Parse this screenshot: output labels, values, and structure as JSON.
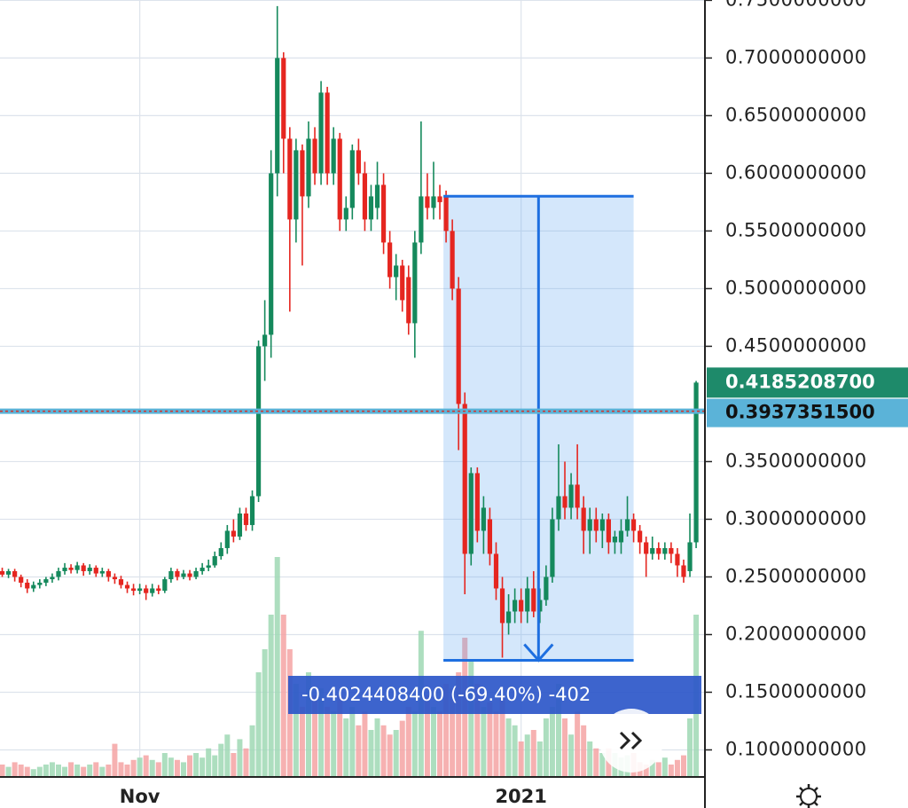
{
  "chart_data": {
    "type": "candlestick",
    "categories": [
      null,
      null,
      null,
      null,
      null,
      null,
      null,
      null,
      null,
      null,
      null,
      null,
      null,
      null,
      null,
      null,
      null,
      null,
      null,
      null,
      null,
      null,
      "Nov",
      null,
      null,
      null,
      null,
      null,
      null,
      null,
      null,
      null,
      null,
      null,
      null,
      null,
      null,
      null,
      null,
      null,
      null,
      null,
      null,
      null,
      null,
      null,
      null,
      null,
      null,
      null,
      null,
      null,
      null,
      null,
      null,
      null,
      null,
      null,
      null,
      null,
      null,
      null,
      null,
      null,
      null,
      null,
      null,
      null,
      null,
      null,
      null,
      null,
      null,
      null,
      null,
      null,
      null,
      null,
      null,
      null,
      null,
      null,
      null,
      "2021",
      null,
      null,
      null,
      null,
      null,
      null,
      null,
      null,
      null,
      null,
      null,
      null,
      null,
      null,
      null,
      null,
      null,
      null,
      null,
      null,
      null,
      null,
      null,
      null,
      null,
      null,
      null,
      null
    ],
    "ohlc": [
      [
        0.255,
        0.258,
        0.25,
        0.252
      ],
      [
        0.252,
        0.257,
        0.249,
        0.255
      ],
      [
        0.255,
        0.257,
        0.246,
        0.25
      ],
      [
        0.25,
        0.252,
        0.241,
        0.245
      ],
      [
        0.245,
        0.248,
        0.236,
        0.24
      ],
      [
        0.24,
        0.246,
        0.237,
        0.243
      ],
      [
        0.243,
        0.248,
        0.24,
        0.245
      ],
      [
        0.245,
        0.25,
        0.242,
        0.248
      ],
      [
        0.248,
        0.253,
        0.245,
        0.25
      ],
      [
        0.25,
        0.258,
        0.247,
        0.255
      ],
      [
        0.255,
        0.262,
        0.252,
        0.258
      ],
      [
        0.258,
        0.261,
        0.253,
        0.256
      ],
      [
        0.256,
        0.263,
        0.253,
        0.26
      ],
      [
        0.26,
        0.262,
        0.251,
        0.255
      ],
      [
        0.255,
        0.261,
        0.252,
        0.258
      ],
      [
        0.258,
        0.26,
        0.25,
        0.253
      ],
      [
        0.253,
        0.258,
        0.25,
        0.255
      ],
      [
        0.255,
        0.257,
        0.246,
        0.25
      ],
      [
        0.25,
        0.253,
        0.244,
        0.248
      ],
      [
        0.248,
        0.251,
        0.24,
        0.243
      ],
      [
        0.243,
        0.246,
        0.236,
        0.24
      ],
      [
        0.24,
        0.244,
        0.234,
        0.238
      ],
      [
        0.238,
        0.244,
        0.235,
        0.24
      ],
      [
        0.24,
        0.243,
        0.23,
        0.236
      ],
      [
        0.236,
        0.244,
        0.233,
        0.24
      ],
      [
        0.24,
        0.243,
        0.235,
        0.238
      ],
      [
        0.238,
        0.25,
        0.236,
        0.248
      ],
      [
        0.248,
        0.258,
        0.245,
        0.255
      ],
      [
        0.255,
        0.257,
        0.247,
        0.25
      ],
      [
        0.25,
        0.256,
        0.248,
        0.253
      ],
      [
        0.253,
        0.256,
        0.247,
        0.25
      ],
      [
        0.25,
        0.258,
        0.248,
        0.255
      ],
      [
        0.255,
        0.262,
        0.252,
        0.258
      ],
      [
        0.258,
        0.265,
        0.255,
        0.26
      ],
      [
        0.26,
        0.272,
        0.258,
        0.268
      ],
      [
        0.268,
        0.28,
        0.265,
        0.275
      ],
      [
        0.275,
        0.295,
        0.27,
        0.29
      ],
      [
        0.29,
        0.3,
        0.28,
        0.285
      ],
      [
        0.285,
        0.31,
        0.282,
        0.305
      ],
      [
        0.305,
        0.31,
        0.29,
        0.295
      ],
      [
        0.295,
        0.325,
        0.29,
        0.32
      ],
      [
        0.32,
        0.455,
        0.315,
        0.45
      ],
      [
        0.45,
        0.49,
        0.42,
        0.46
      ],
      [
        0.46,
        0.62,
        0.44,
        0.6
      ],
      [
        0.6,
        0.745,
        0.58,
        0.7
      ],
      [
        0.7,
        0.705,
        0.6,
        0.63
      ],
      [
        0.63,
        0.64,
        0.48,
        0.56
      ],
      [
        0.56,
        0.63,
        0.54,
        0.62
      ],
      [
        0.62,
        0.625,
        0.52,
        0.58
      ],
      [
        0.58,
        0.645,
        0.57,
        0.63
      ],
      [
        0.63,
        0.64,
        0.59,
        0.6
      ],
      [
        0.6,
        0.68,
        0.59,
        0.67
      ],
      [
        0.67,
        0.675,
        0.59,
        0.6
      ],
      [
        0.6,
        0.64,
        0.59,
        0.63
      ],
      [
        0.63,
        0.635,
        0.55,
        0.56
      ],
      [
        0.56,
        0.58,
        0.55,
        0.57
      ],
      [
        0.57,
        0.625,
        0.56,
        0.62
      ],
      [
        0.62,
        0.63,
        0.59,
        0.6
      ],
      [
        0.6,
        0.61,
        0.55,
        0.56
      ],
      [
        0.56,
        0.59,
        0.55,
        0.58
      ],
      [
        0.57,
        0.61,
        0.56,
        0.59
      ],
      [
        0.59,
        0.6,
        0.53,
        0.54
      ],
      [
        0.54,
        0.55,
        0.5,
        0.51
      ],
      [
        0.51,
        0.53,
        0.49,
        0.52
      ],
      [
        0.52,
        0.525,
        0.48,
        0.49
      ],
      [
        0.51,
        0.52,
        0.46,
        0.47
      ],
      [
        0.47,
        0.55,
        0.44,
        0.54
      ],
      [
        0.54,
        0.645,
        0.53,
        0.58
      ],
      [
        0.58,
        0.6,
        0.56,
        0.57
      ],
      [
        0.57,
        0.61,
        0.56,
        0.58
      ],
      [
        0.58,
        0.59,
        0.56,
        0.575
      ],
      [
        0.58,
        0.585,
        0.54,
        0.55
      ],
      [
        0.55,
        0.56,
        0.49,
        0.5
      ],
      [
        0.5,
        0.51,
        0.36,
        0.4
      ],
      [
        0.4,
        0.41,
        0.235,
        0.27
      ],
      [
        0.27,
        0.345,
        0.26,
        0.34
      ],
      [
        0.34,
        0.345,
        0.28,
        0.29
      ],
      [
        0.29,
        0.32,
        0.27,
        0.31
      ],
      [
        0.3,
        0.31,
        0.26,
        0.27
      ],
      [
        0.27,
        0.28,
        0.23,
        0.24
      ],
      [
        0.24,
        0.25,
        0.18,
        0.21
      ],
      [
        0.21,
        0.235,
        0.2,
        0.22
      ],
      [
        0.22,
        0.24,
        0.21,
        0.23
      ],
      [
        0.23,
        0.24,
        0.21,
        0.22
      ],
      [
        0.22,
        0.25,
        0.21,
        0.24
      ],
      [
        0.24,
        0.255,
        0.215,
        0.22
      ],
      [
        0.22,
        0.24,
        0.21,
        0.23
      ],
      [
        0.23,
        0.26,
        0.225,
        0.25
      ],
      [
        0.25,
        0.31,
        0.245,
        0.3
      ],
      [
        0.3,
        0.365,
        0.29,
        0.32
      ],
      [
        0.32,
        0.35,
        0.3,
        0.31
      ],
      [
        0.31,
        0.34,
        0.3,
        0.33
      ],
      [
        0.33,
        0.365,
        0.3,
        0.31
      ],
      [
        0.31,
        0.32,
        0.27,
        0.29
      ],
      [
        0.29,
        0.31,
        0.27,
        0.3
      ],
      [
        0.3,
        0.31,
        0.28,
        0.29
      ],
      [
        0.29,
        0.305,
        0.275,
        0.3
      ],
      [
        0.3,
        0.305,
        0.27,
        0.28
      ],
      [
        0.28,
        0.29,
        0.27,
        0.285
      ],
      [
        0.28,
        0.3,
        0.27,
        0.29
      ],
      [
        0.29,
        0.32,
        0.285,
        0.3
      ],
      [
        0.3,
        0.305,
        0.28,
        0.29
      ],
      [
        0.29,
        0.295,
        0.27,
        0.28
      ],
      [
        0.28,
        0.285,
        0.25,
        0.27
      ],
      [
        0.27,
        0.285,
        0.265,
        0.275
      ],
      [
        0.275,
        0.28,
        0.265,
        0.27
      ],
      [
        0.27,
        0.28,
        0.265,
        0.275
      ],
      [
        0.275,
        0.28,
        0.262,
        0.27
      ],
      [
        0.27,
        0.275,
        0.25,
        0.26
      ],
      [
        0.26,
        0.265,
        0.245,
        0.25
      ],
      [
        0.255,
        0.305,
        0.25,
        0.28
      ],
      [
        0.28,
        0.42,
        0.275,
        0.41852087
      ]
    ],
    "volume": [
      5,
      4,
      6,
      5,
      4,
      3,
      4,
      5,
      6,
      5,
      4,
      6,
      5,
      4,
      5,
      6,
      4,
      5,
      14,
      6,
      5,
      7,
      8,
      9,
      7,
      6,
      10,
      8,
      7,
      6,
      9,
      10,
      8,
      12,
      9,
      14,
      18,
      10,
      16,
      12,
      22,
      45,
      55,
      70,
      95,
      70,
      55,
      40,
      30,
      45,
      35,
      38,
      30,
      28,
      35,
      25,
      30,
      22,
      28,
      20,
      25,
      22,
      18,
      20,
      24,
      30,
      28,
      63,
      35,
      30,
      28,
      40,
      38,
      45,
      60,
      50,
      40,
      30,
      32,
      28,
      35,
      25,
      22,
      15,
      18,
      20,
      15,
      25,
      30,
      40,
      25,
      18,
      28,
      22,
      15,
      12,
      10,
      12,
      10,
      8,
      9,
      10,
      6,
      5,
      7,
      6,
      8,
      5,
      7,
      9,
      25,
      70
    ],
    "up_color": "#15895c",
    "down_color": "#e52620",
    "ylim": [
      0.0773,
      0.7503
    ],
    "yticks": [
      {
        "value": 0.75,
        "label": "0.7500000000"
      },
      {
        "value": 0.7,
        "label": "0.7000000000"
      },
      {
        "value": 0.65,
        "label": "0.6500000000"
      },
      {
        "value": 0.6,
        "label": "0.6000000000"
      },
      {
        "value": 0.55,
        "label": "0.5500000000"
      },
      {
        "value": 0.5,
        "label": "0.5000000000"
      },
      {
        "value": 0.45,
        "label": "0.4500000000"
      },
      {
        "value": 0.35,
        "label": "0.3500000000"
      },
      {
        "value": 0.3,
        "label": "0.3000000000"
      },
      {
        "value": 0.25,
        "label": "0.2500000000"
      },
      {
        "value": 0.2,
        "label": "0.2000000000"
      },
      {
        "value": 0.15,
        "label": "0.1500000000"
      },
      {
        "value": 0.1,
        "label": "0.1000000000"
      }
    ],
    "grid": true,
    "last_price": {
      "value": 0.41852087,
      "label": "0.4185208700"
    },
    "price_line": {
      "value": 0.39373515,
      "label": "0.3937351500"
    },
    "measure": {
      "from": 0.5801,
      "to": 0.1777,
      "x_from": 71,
      "x_to": 101,
      "label": "-0.4024408400 (-69.40%) -402"
    }
  }
}
